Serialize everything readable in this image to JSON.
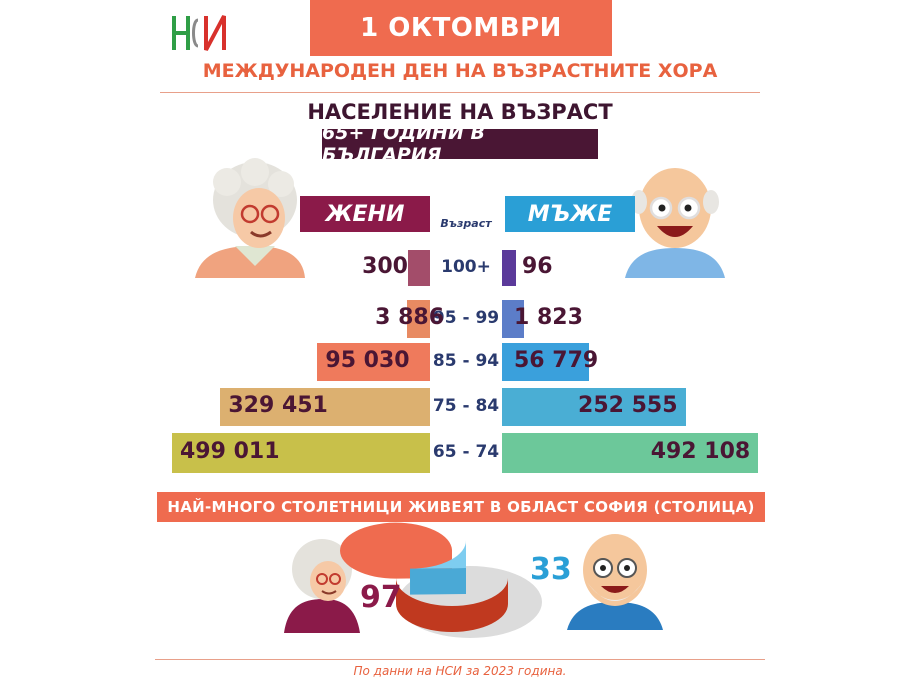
{
  "header": {
    "logo_text": "НСИ",
    "date": "1 ОКТОМВРИ",
    "subtitle": "МЕЖДУНАРОДЕН ДЕН НА ВЪЗРАСТНИТЕ ХОРА",
    "title_line1": "НАСЕЛЕНИЕ НА ВЪЗРАСТ",
    "title_line2": "65+ ГОДИНИ В БЪЛГАРИЯ"
  },
  "chart_data": [
    {
      "type": "bar",
      "orientation": "horizontal-pyramid",
      "title": "НАСЕЛЕНИЕ НА ВЪЗРАСТ 65+ ГОДИНИ В БЪЛГАРИЯ",
      "category_header": "Възраст",
      "categories": [
        "100+",
        "95 - 99",
        "85 - 94",
        "75 - 84",
        "65 - 74"
      ],
      "series": [
        {
          "name": "ЖЕНИ",
          "values": [
            300,
            3886,
            95030,
            329451,
            499011
          ],
          "labels": [
            "300",
            "3 886",
            "95 030",
            "329 451",
            "499 011"
          ]
        },
        {
          "name": "МЪЖЕ",
          "values": [
            96,
            1823,
            56779,
            252555,
            492108
          ],
          "labels": [
            "96",
            "1 823",
            "56 779",
            "252 555",
            "492 108"
          ]
        }
      ],
      "colors": {
        "women": [
          "#a34d6a",
          "#e88a62",
          "#ef7a5c",
          "#dcb070",
          "#c8c04a"
        ],
        "men": [
          "#5b3a9a",
          "#5c7dc8",
          "#3aa0dc",
          "#4aaed4",
          "#6cc89a"
        ]
      }
    },
    {
      "type": "pie",
      "title": "НАЙ-МНОГО СТОЛЕТНИЦИ ЖИВЕЯТ В ОБЛАСТ СОФИЯ (СТОЛИЦА)",
      "categories": [
        "Жени",
        "Мъже"
      ],
      "values": [
        97,
        33
      ],
      "labels": [
        "97",
        "33"
      ],
      "colors": {
        "women": "#ef6b4f",
        "men": "#7ecdf0"
      }
    }
  ],
  "footer": "По данни на НСИ за 2023 година."
}
